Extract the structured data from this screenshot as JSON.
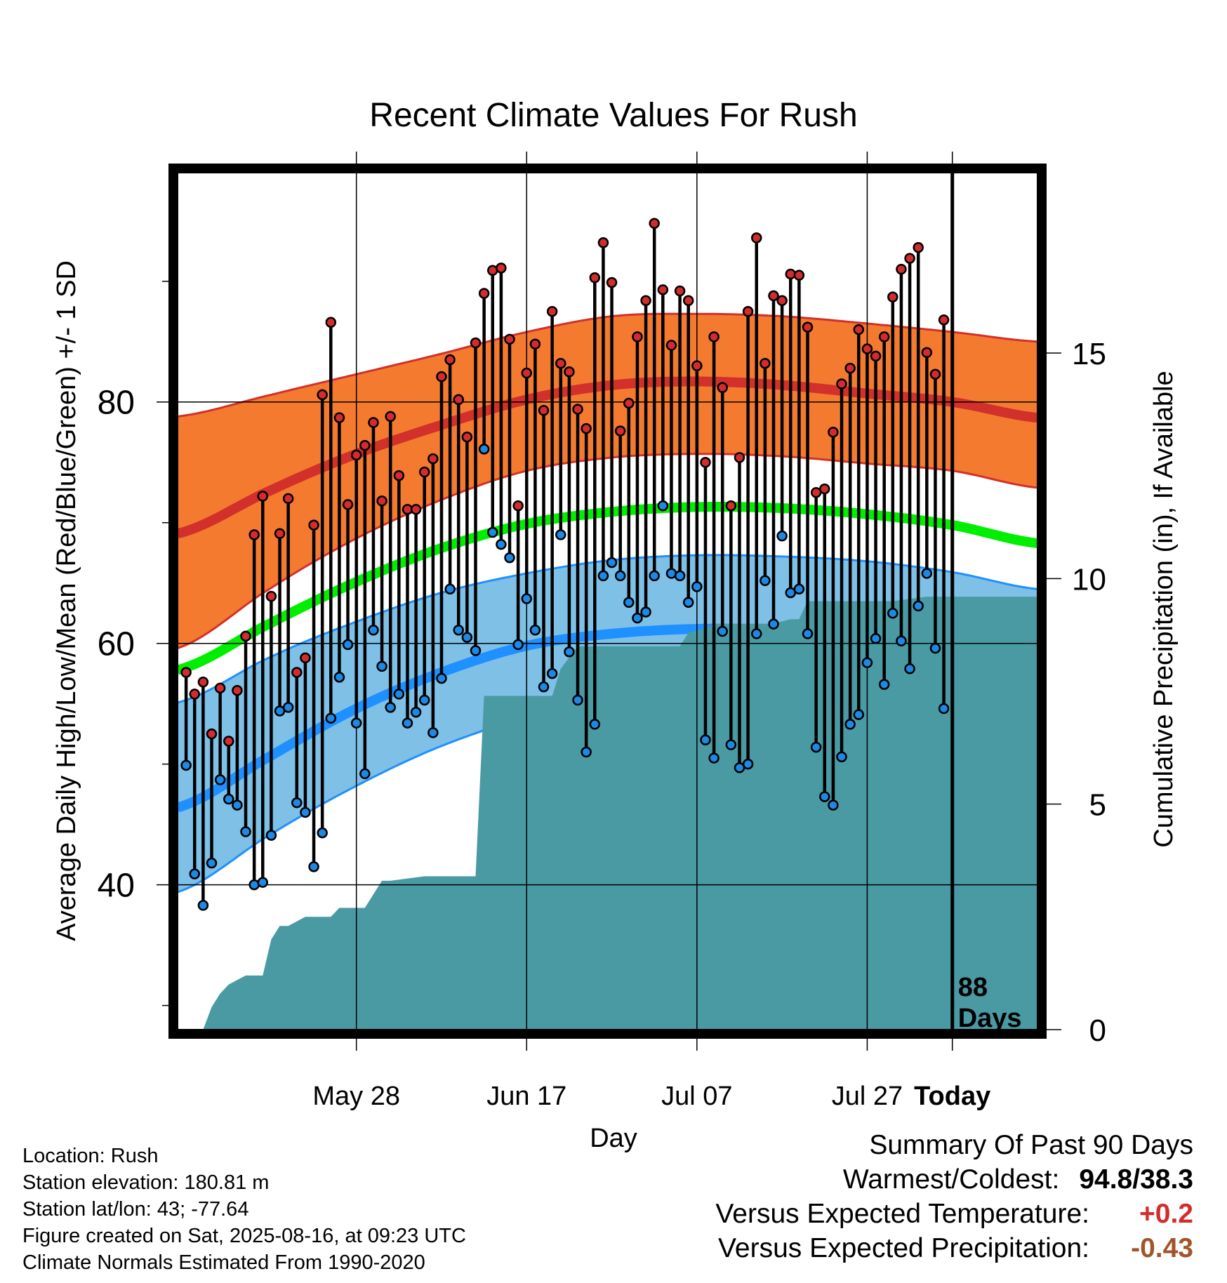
{
  "chart_data": {
    "type": "line",
    "title": "Recent Climate Values For Rush",
    "xlabel": "Day",
    "ylabel": "Average Daily High/Low/Mean (Red/Blue/Green) +/- 1 SD",
    "y2label": "Cumulative Precipitation (in), If Available",
    "x_tick_labels": [
      "May 28",
      "Jun 17",
      "Jul 07",
      "Jul 27",
      "Today"
    ],
    "x_range_days": [
      -91,
      10
    ],
    "y_range": [
      28,
      99
    ],
    "y_ticks": [
      40,
      60,
      80
    ],
    "y2_ticks": [
      0,
      5,
      10,
      15
    ],
    "y2_range": [
      0,
      19
    ],
    "days_label": "88\nDays",
    "colors": {
      "high_band": "#f47a30",
      "high_mean": "#d2302a",
      "low_band": "#7ec0e6",
      "low_mean": "#1e90ff",
      "mean": "#00ee00",
      "precip": "#4a9aa4",
      "high_marker": "#d42c2c",
      "low_marker": "#1e88e5"
    },
    "normals": {
      "days": [
        -91,
        -80,
        -70,
        -60,
        -50,
        -40,
        -30,
        -20,
        -10,
        0,
        10
      ],
      "high_mean": [
        69.1,
        72.7,
        75.7,
        78.1,
        80.2,
        81.4,
        81.7,
        81.4,
        80.7,
        80.0,
        78.7
      ],
      "high_upper": [
        78.8,
        80.6,
        82.3,
        84.0,
        85.8,
        87.1,
        87.3,
        87.1,
        86.5,
        85.8,
        85.0
      ],
      "high_lower": [
        59.6,
        64.6,
        68.7,
        71.9,
        74.3,
        75.4,
        75.7,
        75.5,
        74.9,
        74.3,
        72.9
      ],
      "low_mean": [
        46.4,
        50.7,
        54.6,
        57.6,
        59.8,
        60.8,
        61.2,
        61.1,
        60.6,
        59.6,
        57.8
      ],
      "low_upper": [
        55.1,
        58.9,
        61.8,
        64.2,
        65.8,
        66.9,
        67.3,
        67.2,
        66.8,
        65.9,
        64.5
      ],
      "low_lower": [
        39.4,
        44.2,
        48.2,
        51.5,
        53.8,
        54.9,
        55.4,
        55.5,
        55.1,
        54.4,
        51.8
      ],
      "mean": [
        57.8,
        61.7,
        65.1,
        67.9,
        69.9,
        70.9,
        71.3,
        71.2,
        70.7,
        69.8,
        68.3
      ]
    },
    "daily_start_day": -90,
    "daily_high": [
      57.6,
      55.8,
      56.8,
      52.5,
      56.3,
      51.9,
      56.1,
      60.6,
      69.0,
      72.2,
      63.9,
      69.1,
      72.0,
      57.6,
      58.8,
      69.8,
      80.6,
      86.6,
      78.7,
      71.5,
      75.6,
      76.4,
      78.3,
      71.8,
      78.8,
      73.9,
      71.1,
      71.1,
      74.2,
      75.3,
      82.1,
      83.5,
      80.2,
      77.1,
      84.9,
      89.0,
      90.9,
      91.1,
      85.2,
      71.4,
      82.4,
      84.8,
      79.3,
      87.5,
      83.2,
      82.5,
      79.4,
      77.8,
      90.3,
      93.2,
      89.9,
      77.6,
      79.9,
      85.4,
      88.4,
      94.8,
      89.3,
      84.7,
      89.2,
      88.4,
      83.0,
      75.0,
      85.4,
      81.2,
      71.4,
      75.4,
      87.5,
      93.6,
      83.2,
      88.8,
      88.4,
      90.6,
      90.5,
      86.2,
      72.5,
      72.8,
      77.5,
      81.5,
      82.8,
      86.0,
      84.4,
      83.8,
      85.4,
      88.7,
      91.0,
      91.9,
      92.8,
      84.1,
      82.3,
      86.8
    ],
    "daily_low": [
      49.9,
      40.9,
      38.3,
      41.8,
      48.7,
      47.1,
      46.6,
      44.4,
      40.0,
      40.2,
      44.1,
      54.4,
      54.7,
      46.8,
      46.0,
      41.5,
      44.3,
      53.8,
      57.2,
      59.9,
      53.4,
      49.2,
      61.1,
      58.1,
      54.7,
      55.8,
      53.4,
      54.3,
      55.3,
      52.6,
      57.1,
      64.5,
      61.1,
      60.5,
      59.4,
      76.1,
      69.2,
      68.2,
      67.1,
      59.9,
      63.7,
      61.1,
      56.4,
      57.5,
      69.0,
      59.3,
      55.3,
      51.0,
      53.3,
      65.6,
      66.7,
      65.6,
      63.4,
      62.1,
      62.6,
      65.6,
      71.4,
      65.8,
      65.6,
      63.4,
      64.7,
      52.0,
      50.5,
      61.0,
      51.6,
      49.7,
      50.0,
      60.8,
      65.2,
      61.6,
      68.9,
      64.2,
      64.5,
      60.8,
      51.4,
      47.3,
      46.6,
      50.6,
      53.3,
      54.1,
      58.4,
      60.4,
      56.6,
      62.5,
      60.2,
      57.9,
      63.1,
      65.8,
      59.6,
      54.6
    ],
    "cumulative_precip": {
      "days": [
        -88,
        -87,
        -86,
        -85,
        -83,
        -81,
        -80,
        -79,
        -78,
        -76,
        -73,
        -72,
        -69,
        -67,
        -66,
        -62,
        -61,
        -56,
        -55,
        -52,
        -51,
        -47,
        -46,
        -44,
        -38,
        -37,
        -36,
        -35,
        -32,
        -31,
        -29,
        -28,
        -26,
        -24,
        -22,
        -21,
        -19,
        -18,
        -17,
        -16,
        -14,
        -12,
        -11,
        -8,
        -7,
        -3,
        -2,
        0,
        0.1,
        10
      ],
      "values": [
        0.0,
        0.5,
        0.8,
        1.0,
        1.2,
        1.2,
        2.0,
        2.3,
        2.3,
        2.5,
        2.5,
        2.7,
        2.7,
        3.3,
        3.3,
        3.4,
        3.4,
        3.4,
        7.4,
        7.4,
        7.4,
        7.4,
        8.0,
        8.5,
        8.5,
        8.5,
        8.5,
        8.5,
        8.5,
        8.8,
        8.9,
        9.0,
        9.0,
        9.0,
        9.0,
        9.0,
        9.1,
        9.1,
        9.5,
        9.5,
        9.5,
        9.5,
        9.5,
        9.5,
        9.5,
        9.6,
        9.6,
        9.6,
        9.6,
        9.6
      ]
    }
  },
  "footer": {
    "location": "Location: Rush",
    "elevation": "Station elevation: 180.81 m",
    "latlon": "Station lat/lon: 43; -77.64",
    "created": "Figure created on Sat, 2025-08-16, at 09:23 UTC",
    "normals": "Climate Normals Estimated From 1990-2020"
  },
  "summary": {
    "title": "Summary Of Past 90 Days",
    "warm_cold_label": "Warmest/Coldest:",
    "warm_cold_value": "94.8/38.3",
    "temp_label": "Versus Expected Temperature:",
    "temp_value": "+0.2",
    "temp_color": "#d42c2c",
    "precip_label": "Versus Expected Precipitation:",
    "precip_value": "-0.43",
    "precip_color": "#a0552a"
  }
}
